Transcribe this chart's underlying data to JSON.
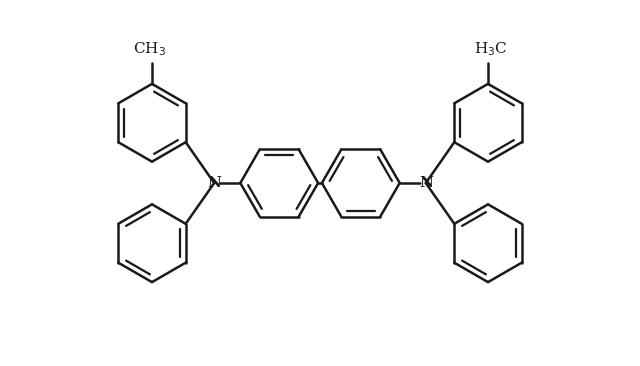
{
  "background_color": "#ffffff",
  "line_color": "#1a1a1a",
  "line_width": 1.8,
  "fig_width": 6.4,
  "fig_height": 3.66,
  "dpi": 100
}
